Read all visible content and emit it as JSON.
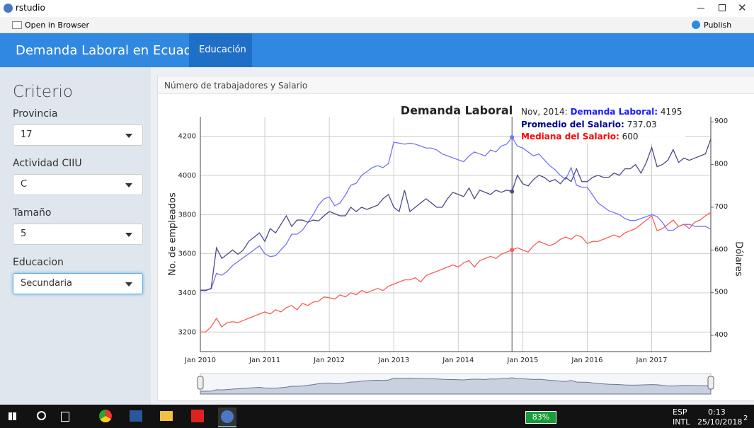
{
  "window": {
    "title": "rstudio",
    "open_in_browser": "Open in Browser",
    "publish": "Publish"
  },
  "navbar": {
    "title": "Demanda Laboral en Ecuador",
    "tab": "Educación"
  },
  "sidebar": {
    "title": "Criterio",
    "inputs": [
      {
        "label": "Provincia",
        "value": "17"
      },
      {
        "label": "Actividad CIIU",
        "value": "C"
      },
      {
        "label": "Tamaño",
        "value": "5"
      },
      {
        "label": "Educacion",
        "value": "Secundaria"
      }
    ]
  },
  "panel": {
    "header": "Número de trabajadores y Salario"
  },
  "chart_data": {
    "type": "line",
    "title": "Demanda Laboral",
    "ylabel": "No. de empleados",
    "y2label": "Dólares",
    "x": [
      "2010-01",
      "2010-02",
      "2010-03",
      "2010-04",
      "2010-05",
      "2010-06",
      "2010-07",
      "2010-08",
      "2010-09",
      "2010-10",
      "2010-11",
      "2010-12",
      "2011-01",
      "2011-02",
      "2011-03",
      "2011-04",
      "2011-05",
      "2011-06",
      "2011-07",
      "2011-08",
      "2011-09",
      "2011-10",
      "2011-11",
      "2011-12",
      "2012-01",
      "2012-02",
      "2012-03",
      "2012-04",
      "2012-05",
      "2012-06",
      "2012-07",
      "2012-08",
      "2012-09",
      "2012-10",
      "2012-11",
      "2012-12",
      "2013-01",
      "2013-02",
      "2013-03",
      "2013-04",
      "2013-05",
      "2013-06",
      "2013-07",
      "2013-08",
      "2013-09",
      "2013-10",
      "2013-11",
      "2013-12",
      "2014-01",
      "2014-02",
      "2014-03",
      "2014-04",
      "2014-05",
      "2014-06",
      "2014-07",
      "2014-08",
      "2014-09",
      "2014-10",
      "2014-11",
      "2014-12",
      "2015-01",
      "2015-02",
      "2015-03",
      "2015-04",
      "2015-05",
      "2015-06",
      "2015-07",
      "2015-08",
      "2015-09",
      "2015-10",
      "2015-11",
      "2015-12",
      "2016-01",
      "2016-02",
      "2016-03",
      "2016-04",
      "2016-05",
      "2016-06",
      "2016-07",
      "2016-08",
      "2016-09",
      "2016-10",
      "2016-11",
      "2016-12",
      "2017-01",
      "2017-02",
      "2017-03",
      "2017-04",
      "2017-05",
      "2017-06",
      "2017-07",
      "2017-08",
      "2017-09",
      "2017-10",
      "2017-11",
      "2017-12"
    ],
    "xlim": [
      "2010-01",
      "2017-12"
    ],
    "xticks": [
      {
        "value": "2010-01",
        "label": "Jan 2010"
      },
      {
        "value": "2011-01",
        "label": "Jan 2011"
      },
      {
        "value": "2012-01",
        "label": "Jan 2012"
      },
      {
        "value": "2013-01",
        "label": "Jan 2013"
      },
      {
        "value": "2014-01",
        "label": "Jan 2014"
      },
      {
        "value": "2015-01",
        "label": "Jan 2015"
      },
      {
        "value": "2016-01",
        "label": "Jan 2016"
      },
      {
        "value": "2017-01",
        "label": "Jan 2017"
      }
    ],
    "ylim": [
      3100,
      4300
    ],
    "yticks": [
      3200,
      3400,
      3600,
      3800,
      4000,
      4200
    ],
    "y2lim": [
      362,
      912
    ],
    "y2ticks": [
      400,
      500,
      600,
      700,
      800,
      900
    ],
    "grid": true,
    "series": [
      {
        "name": "Demanda Laboral",
        "color": "#7373ff",
        "axis": "y",
        "values": [
          3415,
          3415,
          3420,
          3500,
          3490,
          3510,
          3540,
          3560,
          3580,
          3600,
          3620,
          3640,
          3600,
          3585,
          3590,
          3620,
          3650,
          3700,
          3700,
          3720,
          3760,
          3800,
          3850,
          3880,
          3890,
          3845,
          3860,
          3900,
          3950,
          3960,
          4000,
          4020,
          4040,
          4050,
          4040,
          4060,
          4170,
          4165,
          4160,
          4165,
          4160,
          4150,
          4140,
          4140,
          4130,
          4110,
          4100,
          4090,
          4080,
          4070,
          4100,
          4120,
          4110,
          4100,
          4130,
          4120,
          4150,
          4160,
          4195,
          4150,
          4140,
          4120,
          4100,
          4110,
          4080,
          4050,
          4030,
          4000,
          3980,
          4040,
          3950,
          3940,
          3940,
          3900,
          3860,
          3840,
          3820,
          3810,
          3800,
          3780,
          3770,
          3770,
          3780,
          3790,
          3800,
          3790,
          3760,
          3720,
          3720,
          3740,
          3750,
          3750,
          3740,
          3740,
          3740,
          3725
        ]
      },
      {
        "name": "Promedio del Salario",
        "color": "#4a4a8c",
        "axis": "y2",
        "values": [
          505,
          505,
          510,
          605,
          580,
          590,
          600,
          590,
          600,
          620,
          630,
          640,
          620,
          650,
          640,
          660,
          680,
          655,
          670,
          670,
          665,
          670,
          668,
          680,
          690,
          685,
          680,
          680,
          700,
          690,
          700,
          695,
          700,
          705,
          720,
          730,
          700,
          690,
          740,
          690,
          700,
          710,
          720,
          710,
          700,
          700,
          720,
          735,
          730,
          725,
          745,
          720,
          740,
          735,
          730,
          740,
          735,
          740,
          737.03,
          775,
          755,
          750,
          765,
          775,
          770,
          760,
          765,
          755,
          770,
          760,
          790,
          760,
          760,
          770,
          775,
          770,
          770,
          780,
          775,
          790,
          790,
          800,
          780,
          805,
          840,
          795,
          800,
          810,
          835,
          805,
          815,
          810,
          815,
          820,
          825,
          860
        ]
      },
      {
        "name": "Mediana del Salario",
        "color": "#ff5a5a",
        "axis": "y2",
        "values": [
          408,
          408,
          420,
          440,
          420,
          430,
          432,
          430,
          435,
          440,
          445,
          450,
          455,
          450,
          460,
          455,
          465,
          470,
          460,
          475,
          470,
          478,
          480,
          490,
          488,
          485,
          495,
          490,
          500,
          495,
          505,
          500,
          505,
          510,
          505,
          515,
          520,
          525,
          530,
          530,
          535,
          525,
          540,
          545,
          550,
          555,
          560,
          565,
          560,
          570,
          575,
          560,
          575,
          580,
          585,
          580,
          590,
          595,
          600,
          605,
          600,
          595,
          610,
          620,
          615,
          610,
          615,
          625,
          630,
          625,
          635,
          630,
          615,
          620,
          620,
          625,
          630,
          635,
          630,
          640,
          645,
          650,
          660,
          670,
          680,
          645,
          650,
          660,
          670,
          655,
          660,
          650,
          665,
          670,
          680,
          688
        ]
      }
    ],
    "tooltip": {
      "x": "2014-11",
      "date": "Nov, 2014:",
      "items": [
        {
          "name": "Demanda Laboral:",
          "value": "4195"
        },
        {
          "name": "Promedio del Salario:",
          "value": "737.03"
        },
        {
          "name": "Mediana del Salario:",
          "value": "600"
        }
      ]
    }
  },
  "taskbar": {
    "battery": "83%",
    "lang": "ESP",
    "layout": "INTL",
    "time": "0:13",
    "date": "25/10/2018",
    "notifications": "2"
  }
}
